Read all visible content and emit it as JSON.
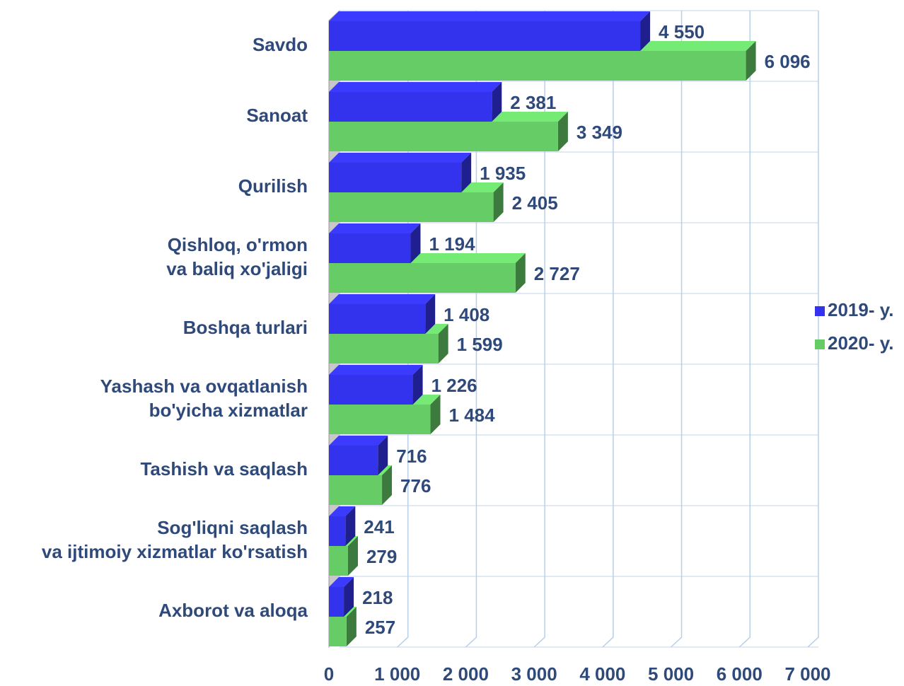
{
  "chart_data": {
    "type": "bar3d_horizontal",
    "categories": [
      [
        "Savdo"
      ],
      [
        "Sanoat"
      ],
      [
        "Qurilish"
      ],
      [
        "Qishloq, o'rmon",
        "va baliq xo'jaligi"
      ],
      [
        "Boshqa turlari"
      ],
      [
        "Yashash va ovqatlanish",
        "bo'yicha xizmatlar"
      ],
      [
        "Tashish va saqlash"
      ],
      [
        "Sog'liqni saqlash",
        "va ijtimoiy xizmatlar ko'rsatish"
      ],
      [
        "Axborot va aloqa"
      ]
    ],
    "series": [
      {
        "name": "2019- y.",
        "color": "#3333ee",
        "values": [
          4550,
          2381,
          1935,
          1194,
          1408,
          1226,
          716,
          241,
          218
        ],
        "value_labels": [
          "4 550",
          "2 381",
          "1 935",
          "1 194",
          "1 408",
          "1 226",
          "716",
          "241",
          "218"
        ]
      },
      {
        "name": "2020- y.",
        "color": "#66cc66",
        "values": [
          6096,
          3349,
          2405,
          2727,
          1599,
          1484,
          776,
          279,
          257
        ],
        "value_labels": [
          "6 096",
          "3 349",
          "2 405",
          "2 727",
          "1 599",
          "1 484",
          "776",
          "279",
          "257"
        ]
      }
    ],
    "xlim": [
      0,
      7000
    ],
    "xticks": [
      0,
      {
        "value": 1000,
        "label": "1 000"
      },
      {
        "value": 2000,
        "label": "2 000"
      },
      {
        "value": 3000,
        "label": "3 000"
      },
      {
        "value": 4000,
        "label": "4 000"
      },
      {
        "value": 5000,
        "label": "5 000"
      },
      {
        "value": 6000,
        "label": "6 000"
      },
      {
        "value": 7000,
        "label": "7 000"
      }
    ],
    "grid": true,
    "legend": "right"
  }
}
